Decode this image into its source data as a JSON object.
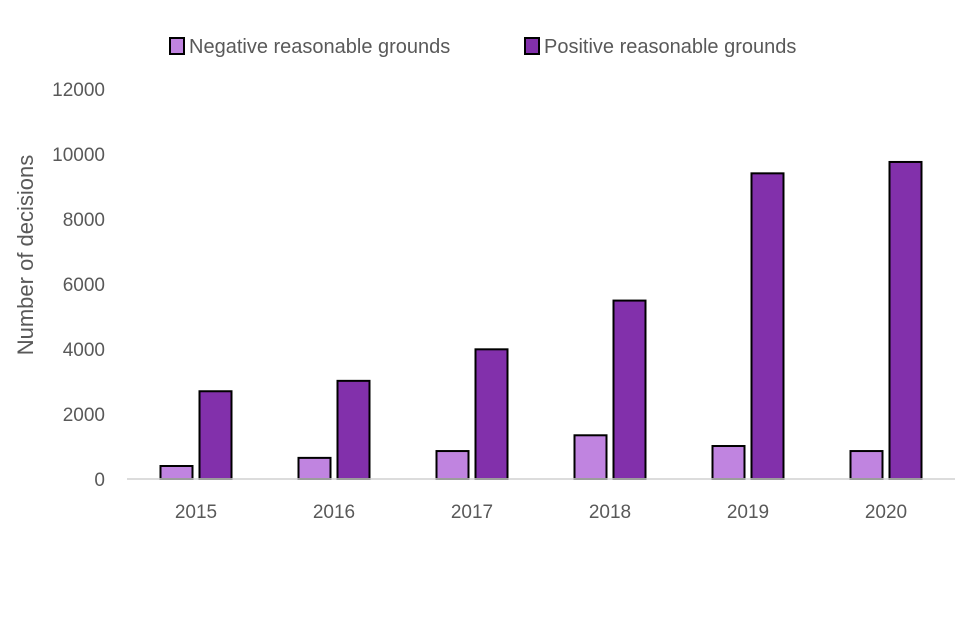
{
  "chart_data": {
    "type": "bar",
    "title": "",
    "xlabel": "",
    "ylabel": "Number of decisions",
    "categories": [
      "2015",
      "2016",
      "2017",
      "2018",
      "2019",
      "2020"
    ],
    "series": [
      {
        "name": "Negative reasonable grounds",
        "color": "#c084e0",
        "values": [
          400,
          650,
          860,
          1345,
          1015,
          860
        ]
      },
      {
        "name": "Positive reasonable grounds",
        "color": "#8230ab",
        "values": [
          2700,
          3020,
          3990,
          5490,
          9405,
          9755
        ]
      }
    ],
    "ylim": [
      0,
      12000
    ],
    "yticks": [
      0,
      2000,
      4000,
      6000,
      8000,
      10000,
      12000
    ],
    "ytick_labels": [
      "0",
      "2000",
      "4000",
      "6000",
      "8000",
      "10000",
      "12000"
    ],
    "grid": false,
    "legend_position": "top"
  }
}
